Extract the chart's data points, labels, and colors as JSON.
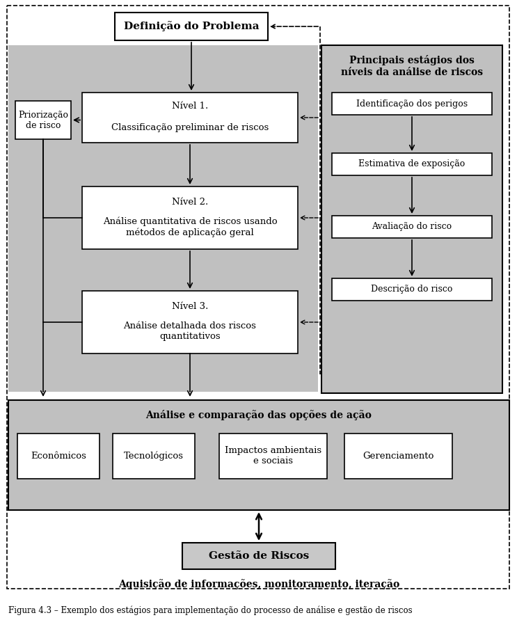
{
  "title": "Definição do Problema",
  "box_nivel1_title": "Nível 1.",
  "box_nivel1_body": "Classificação preliminar de riscos",
  "box_nivel2_title": "Nível 2.",
  "box_nivel2_body": "Análise quantitativa de riscos usando\nmétodos de aplicação geral",
  "box_nivel3_title": "Nível 3.",
  "box_nivel3_body": "Análise detalhada dos riscos\nquantitativos",
  "box_prior": "Priorização\nde risco",
  "right_panel_title": "Principais estágios dos\nníveis da análise de riscos",
  "right_box1": "Identificação dos perigos",
  "right_box2": "Estimativa de exposição",
  "right_box3": "Avaliação do risco",
  "right_box4": "Descrição do risco",
  "bottom_panel_title": "Análise e comparação das opções de ação",
  "bottom_box1": "Econômicos",
  "bottom_box2": "Tecnológicos",
  "bottom_box3": "Impactos ambientais\ne sociais",
  "bottom_box4": "Gerenciamento",
  "gestao_box": "Gestão de Riscos",
  "aquisicao_text": "Aquisição de informações, monitoramento, iteração",
  "caption": "Figura 4.3 – Exemplo dos estágios para implementação do processo de análise e gestão de riscos",
  "gray_bg": "#c0c0c0",
  "white_box": "#ffffff",
  "gestao_bg": "#c8c8c8"
}
